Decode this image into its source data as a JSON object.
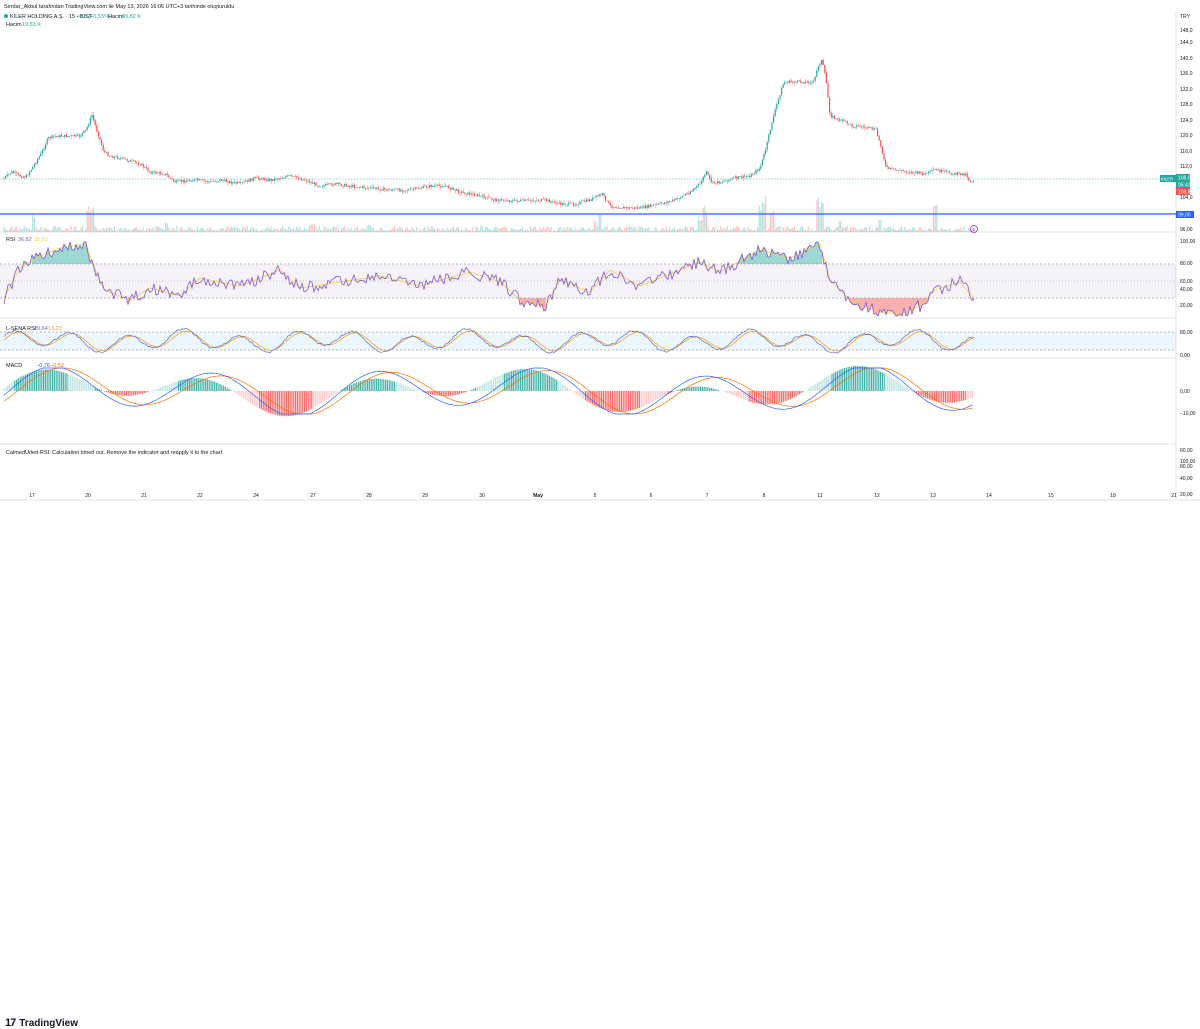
{
  "header": {
    "caption": "Serdar_Akbul tarafından TradingView.com ile May 13, 2026 16:06 UTC+3 tarihinde oluşturuldu",
    "symbol": "KİLER HOLDİNG A.Ş. · 15 · BIST",
    "change": "+0,6 (+0,55%)",
    "volume_label": "Hacim",
    "volume_value": "89,82 K",
    "volume_sub_label": "Hacim",
    "volume_sub_value": "19,83 K",
    "currency": "TRY"
  },
  "price_axis": {
    "ticks": [
      "148,0",
      "144,0",
      "140,0",
      "136,0",
      "132,0",
      "128,0",
      "124,0",
      "120,0",
      "116,0",
      "112,0",
      "104,0",
      "96,00"
    ],
    "last_price_tag": "108,9",
    "last_price_sub": "05:43",
    "symbol_tag": "KILER",
    "sell_tag": "108,8",
    "line_tag": "99,00"
  },
  "rsi": {
    "label": "RSI",
    "v1": "36,82",
    "v2": "39,23",
    "ticks": [
      "100,00",
      "80,00",
      "60,00",
      "40,00",
      "20,00"
    ]
  },
  "smi": {
    "label": "L-SENA RSI",
    "v1": "29,64",
    "v2": "13,23",
    "ticks": [
      "80,00",
      "0,00"
    ]
  },
  "macd": {
    "label": "MACD",
    "v1": "−0,76",
    "v2": "−0,52",
    "ticks": [
      "0,00",
      "−10,00"
    ]
  },
  "error_pane": {
    "message": "CalmedUrled-RSI: Calculation timed out. Remove the indicator and reapply it to the chart",
    "ticks": [
      "100,00",
      "80,00",
      "60,00",
      "40,00",
      "20,00"
    ]
  },
  "x_axis": {
    "labels": [
      "17",
      "20",
      "21",
      "22",
      "24",
      "27",
      "28",
      "29",
      "30",
      "May",
      "5",
      "6",
      "7",
      "8",
      "11",
      "12",
      "13",
      "14",
      "15",
      "18",
      "21"
    ]
  },
  "brand": {
    "name": "TradingView",
    "mark": "17"
  },
  "colors": {
    "up": "#26a69a",
    "down": "#ef5350",
    "blue": "#2962ff",
    "purple": "#7e57c2",
    "yellow": "#f7c948",
    "orange": "#ff9800"
  },
  "chart_data": {
    "type": "candlestick",
    "title": "KİLER HOLDİNG A.Ş. · 15 · BIST",
    "x": [
      "17",
      "20",
      "21",
      "22",
      "24",
      "27",
      "28",
      "29",
      "30",
      "May",
      "5",
      "6",
      "7",
      "8",
      "11",
      "12",
      "13",
      "14"
    ],
    "close": [
      108.5,
      112.0,
      113.0,
      111.0,
      110.0,
      108.5,
      107.0,
      104.5,
      103.5,
      104.5,
      104.0,
      104.0,
      108.0,
      136.0,
      136.0,
      111.0,
      111.0,
      108.9
    ],
    "ylim": [
      96,
      150
    ],
    "horizontal_line": 99.0
  }
}
